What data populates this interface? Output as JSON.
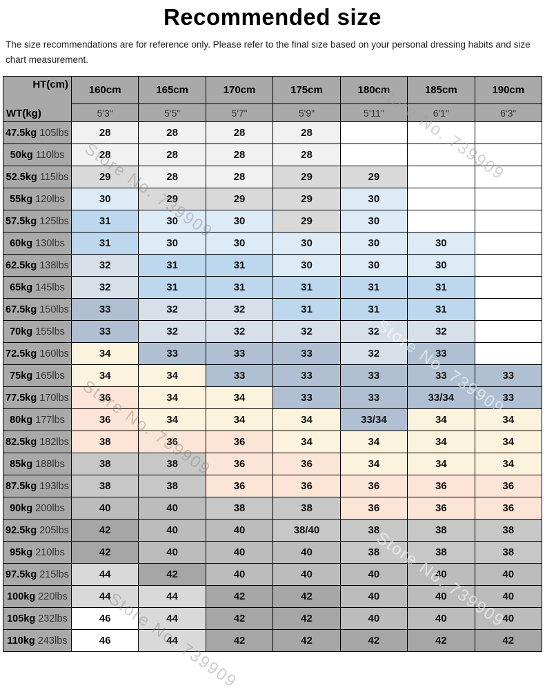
{
  "title": "Recommended size",
  "disclaimer": "The size recommendations are for reference only. Please refer to the final size based on your personal dressing habits and size chart measurement.",
  "watermark": "Store No. 739909",
  "table": {
    "corner": {
      "top": "HT(cm)",
      "bottom": "WT(kg)"
    },
    "heights_cm": [
      "160cm",
      "165cm",
      "170cm",
      "175cm",
      "180cm",
      "185cm",
      "190cm"
    ],
    "heights_ft": [
      "5'3\"",
      "5'5\"",
      "5'7\"",
      "5'9\"",
      "5'11\"",
      "6'1\"",
      "6'3\""
    ],
    "palette": {
      "w": "#ffffff",
      "w2": "#f1f1f1",
      "g1": "#d9d9d9",
      "g2": "#c7c7c7",
      "g3": "#bcbcbc",
      "g4": "#a6a6a6",
      "b1": "#ddebf7",
      "b2": "#bdd7ee",
      "b3": "#d7dfe9",
      "b4": "#b0c0d2",
      "cr": "#fbf3dd",
      "pk": "#fce4d6",
      "header": "#a9a9a9"
    },
    "rows": [
      {
        "kg": "47.5kg",
        "lbs": "105lbs",
        "cells": [
          [
            "28",
            "w2"
          ],
          [
            "28",
            "w2"
          ],
          [
            "28",
            "w2"
          ],
          [
            "28",
            "w2"
          ],
          [
            "",
            "w"
          ],
          [
            "",
            "w"
          ],
          [
            "",
            "w"
          ]
        ]
      },
      {
        "kg": "50kg",
        "lbs": "110lbs",
        "cells": [
          [
            "28",
            "w2"
          ],
          [
            "28",
            "w2"
          ],
          [
            "28",
            "w2"
          ],
          [
            "28",
            "w2"
          ],
          [
            "",
            "w"
          ],
          [
            "",
            "w"
          ],
          [
            "",
            "w"
          ]
        ]
      },
      {
        "kg": "52.5kg",
        "lbs": "115lbs",
        "cells": [
          [
            "29",
            "g1"
          ],
          [
            "28",
            "w2"
          ],
          [
            "28",
            "w2"
          ],
          [
            "29",
            "g1"
          ],
          [
            "29",
            "g1"
          ],
          [
            "",
            "w"
          ],
          [
            "",
            "w"
          ]
        ]
      },
      {
        "kg": "55kg",
        "lbs": "120lbs",
        "cells": [
          [
            "30",
            "b1"
          ],
          [
            "29",
            "g1"
          ],
          [
            "29",
            "g1"
          ],
          [
            "29",
            "g1"
          ],
          [
            "30",
            "b1"
          ],
          [
            "",
            "w"
          ],
          [
            "",
            "w"
          ]
        ]
      },
      {
        "kg": "57.5kg",
        "lbs": "125lbs",
        "cells": [
          [
            "31",
            "b2"
          ],
          [
            "30",
            "b1"
          ],
          [
            "30",
            "b1"
          ],
          [
            "29",
            "g1"
          ],
          [
            "30",
            "b1"
          ],
          [
            "",
            "w"
          ],
          [
            "",
            "w"
          ]
        ]
      },
      {
        "kg": "60kg",
        "lbs": "130lbs",
        "cells": [
          [
            "31",
            "b2"
          ],
          [
            "30",
            "b1"
          ],
          [
            "30",
            "b1"
          ],
          [
            "30",
            "b1"
          ],
          [
            "30",
            "b1"
          ],
          [
            "30",
            "b1"
          ],
          [
            "",
            "w"
          ]
        ]
      },
      {
        "kg": "62.5kg",
        "lbs": "138lbs",
        "cells": [
          [
            "32",
            "b3"
          ],
          [
            "31",
            "b2"
          ],
          [
            "31",
            "b2"
          ],
          [
            "30",
            "b1"
          ],
          [
            "30",
            "b1"
          ],
          [
            "30",
            "b1"
          ],
          [
            "",
            "w"
          ]
        ]
      },
      {
        "kg": "65kg",
        "lbs": "145lbs",
        "cells": [
          [
            "32",
            "b3"
          ],
          [
            "31",
            "b2"
          ],
          [
            "31",
            "b2"
          ],
          [
            "31",
            "b2"
          ],
          [
            "31",
            "b2"
          ],
          [
            "31",
            "b2"
          ],
          [
            "",
            "w"
          ]
        ]
      },
      {
        "kg": "67.5kg",
        "lbs": "150lbs",
        "cells": [
          [
            "33",
            "b4"
          ],
          [
            "32",
            "b3"
          ],
          [
            "32",
            "b3"
          ],
          [
            "31",
            "b2"
          ],
          [
            "31",
            "b2"
          ],
          [
            "31",
            "b2"
          ],
          [
            "",
            "w"
          ]
        ]
      },
      {
        "kg": "70kg",
        "lbs": "155lbs",
        "cells": [
          [
            "33",
            "b4"
          ],
          [
            "32",
            "b3"
          ],
          [
            "32",
            "b3"
          ],
          [
            "32",
            "b3"
          ],
          [
            "32",
            "b3"
          ],
          [
            "32",
            "b3"
          ],
          [
            "",
            "w"
          ]
        ]
      },
      {
        "kg": "72.5kg",
        "lbs": "160lbs",
        "cells": [
          [
            "34",
            "cr"
          ],
          [
            "33",
            "b4"
          ],
          [
            "33",
            "b4"
          ],
          [
            "33",
            "b4"
          ],
          [
            "32",
            "b3"
          ],
          [
            "33",
            "b4"
          ],
          [
            "",
            "w"
          ]
        ]
      },
      {
        "kg": "75kg",
        "lbs": "165lbs",
        "cells": [
          [
            "34",
            "cr"
          ],
          [
            "34",
            "cr"
          ],
          [
            "33",
            "b4"
          ],
          [
            "33",
            "b4"
          ],
          [
            "33",
            "b4"
          ],
          [
            "33",
            "b4"
          ],
          [
            "33",
            "b4"
          ]
        ]
      },
      {
        "kg": "77.5kg",
        "lbs": "170lbs",
        "cells": [
          [
            "36",
            "pk"
          ],
          [
            "34",
            "cr"
          ],
          [
            "34",
            "cr"
          ],
          [
            "33",
            "b4"
          ],
          [
            "33",
            "b4"
          ],
          [
            "33/34",
            "b4"
          ],
          [
            "33",
            "b4"
          ]
        ]
      },
      {
        "kg": "80kg",
        "lbs": "177lbs",
        "cells": [
          [
            "36",
            "pk"
          ],
          [
            "34",
            "cr"
          ],
          [
            "34",
            "cr"
          ],
          [
            "34",
            "cr"
          ],
          [
            "33/34",
            "b4"
          ],
          [
            "34",
            "cr"
          ],
          [
            "34",
            "cr"
          ]
        ]
      },
      {
        "kg": "82.5kg",
        "lbs": "182lbs",
        "cells": [
          [
            "38",
            "pk"
          ],
          [
            "36",
            "pk"
          ],
          [
            "36",
            "pk"
          ],
          [
            "34",
            "cr"
          ],
          [
            "34",
            "cr"
          ],
          [
            "34",
            "cr"
          ],
          [
            "34",
            "cr"
          ]
        ]
      },
      {
        "kg": "85kg",
        "lbs": "188lbs",
        "cells": [
          [
            "38",
            "g2"
          ],
          [
            "38",
            "g2"
          ],
          [
            "36",
            "pk"
          ],
          [
            "36",
            "pk"
          ],
          [
            "34",
            "cr"
          ],
          [
            "34",
            "cr"
          ],
          [
            "34",
            "cr"
          ]
        ]
      },
      {
        "kg": "87.5kg",
        "lbs": "193lbs",
        "cells": [
          [
            "38",
            "g2"
          ],
          [
            "38",
            "g2"
          ],
          [
            "36",
            "pk"
          ],
          [
            "36",
            "pk"
          ],
          [
            "36",
            "pk"
          ],
          [
            "36",
            "pk"
          ],
          [
            "36",
            "pk"
          ]
        ]
      },
      {
        "kg": "90kg",
        "lbs": "200lbs",
        "cells": [
          [
            "40",
            "g3"
          ],
          [
            "40",
            "g3"
          ],
          [
            "38",
            "g2"
          ],
          [
            "38",
            "g2"
          ],
          [
            "36",
            "pk"
          ],
          [
            "36",
            "pk"
          ],
          [
            "36",
            "pk"
          ]
        ]
      },
      {
        "kg": "92.5kg",
        "lbs": "205lbs",
        "cells": [
          [
            "42",
            "g4"
          ],
          [
            "40",
            "g3"
          ],
          [
            "40",
            "g3"
          ],
          [
            "38/40",
            "g2"
          ],
          [
            "38",
            "g2"
          ],
          [
            "38",
            "g2"
          ],
          [
            "38",
            "g2"
          ]
        ]
      },
      {
        "kg": "95kg",
        "lbs": "210lbs",
        "cells": [
          [
            "42",
            "g4"
          ],
          [
            "40",
            "g3"
          ],
          [
            "40",
            "g3"
          ],
          [
            "40",
            "g3"
          ],
          [
            "38",
            "g2"
          ],
          [
            "38",
            "g2"
          ],
          [
            "38",
            "g2"
          ]
        ]
      },
      {
        "kg": "97.5kg",
        "lbs": "215lbs",
        "cells": [
          [
            "44",
            "g1"
          ],
          [
            "42",
            "g4"
          ],
          [
            "40",
            "g3"
          ],
          [
            "40",
            "g3"
          ],
          [
            "40",
            "g3"
          ],
          [
            "40",
            "g3"
          ],
          [
            "40",
            "g3"
          ]
        ]
      },
      {
        "kg": "100kg",
        "lbs": "220lbs",
        "cells": [
          [
            "44",
            "g1"
          ],
          [
            "44",
            "g1"
          ],
          [
            "42",
            "g4"
          ],
          [
            "42",
            "g4"
          ],
          [
            "40",
            "g3"
          ],
          [
            "40",
            "g3"
          ],
          [
            "40",
            "g3"
          ]
        ]
      },
      {
        "kg": "105kg",
        "lbs": "232lbs",
        "cells": [
          [
            "46",
            "w"
          ],
          [
            "44",
            "g1"
          ],
          [
            "42",
            "g4"
          ],
          [
            "42",
            "g4"
          ],
          [
            "40",
            "g3"
          ],
          [
            "40",
            "g3"
          ],
          [
            "40",
            "g3"
          ]
        ]
      },
      {
        "kg": "110kg",
        "lbs": "243lbs",
        "cells": [
          [
            "46",
            "w"
          ],
          [
            "44",
            "g1"
          ],
          [
            "42",
            "g4"
          ],
          [
            "42",
            "g4"
          ],
          [
            "42",
            "g4"
          ],
          [
            "42",
            "g4"
          ],
          [
            "42",
            "g4"
          ]
        ]
      }
    ]
  }
}
